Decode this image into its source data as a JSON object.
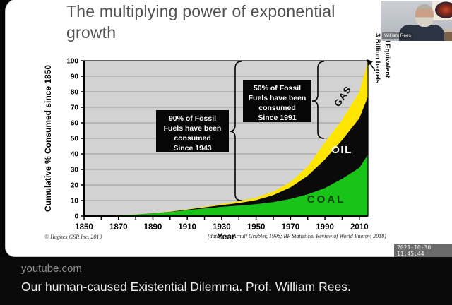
{
  "page": {
    "site": "youtube.com",
    "video_title": "Our human-caused Existential Dilemma. Prof. William Rees.",
    "timestamp": "2021-10-30 11:45:44"
  },
  "webcam": {
    "name_label": "William Rees"
  },
  "slide": {
    "title": "The multiplying power of exponential growth",
    "right_axis_note": [
      "3 Billion barrels",
      "Oil Equivalent"
    ],
    "footnote_left": "© Hughes GSR Inc, 2019",
    "footnote_right": "(data from Arnulf Grubler, 1998; BP Statistical Review of World Energy, 2018)"
  },
  "chart_data": {
    "type": "area",
    "stacked": true,
    "title": "The multiplying power of exponential growth",
    "xlabel": "Year",
    "ylabel": "Cumulative % Consumed since 1850",
    "xlim": [
      1850,
      2015
    ],
    "ylim": [
      0,
      100
    ],
    "x_ticks": [
      1850,
      1870,
      1890,
      1910,
      1930,
      1950,
      1970,
      1990,
      2010
    ],
    "y_ticks": [
      0,
      10,
      20,
      30,
      40,
      50,
      60,
      70,
      80,
      90,
      100
    ],
    "grid": true,
    "x": [
      1850,
      1860,
      1870,
      1880,
      1890,
      1900,
      1910,
      1920,
      1930,
      1940,
      1950,
      1960,
      1970,
      1980,
      1990,
      2000,
      2010,
      2015
    ],
    "series": [
      {
        "name": "COAL",
        "color": "#17c417",
        "label_color": "#123f12",
        "cumulative_top": [
          0,
          0.2,
          0.5,
          1.0,
          1.7,
          2.6,
          3.8,
          4.9,
          5.9,
          6.7,
          7.6,
          9.0,
          11.0,
          14.0,
          18.0,
          24.0,
          31.0,
          39.5
        ]
      },
      {
        "name": "OIL",
        "color": "#0a0a0a",
        "label_color": "#ffffff",
        "cumulative_top": [
          0,
          0.2,
          0.5,
          1.0,
          1.8,
          2.8,
          4.2,
          5.6,
          7.1,
          8.4,
          10.3,
          13.5,
          18.5,
          26.0,
          36.5,
          49.0,
          63.0,
          77.0
        ]
      },
      {
        "name": "GAS",
        "color": "#ffe600",
        "label_color": "#111111",
        "cumulative_top": [
          0,
          0.2,
          0.6,
          1.1,
          1.9,
          3.0,
          4.5,
          6.1,
          7.8,
          9.5,
          11.8,
          15.8,
          22.0,
          32.0,
          47.5,
          62.0,
          80.0,
          100.0
        ]
      }
    ],
    "annotations": [
      {
        "lines": [
          "90% of Fossil",
          "Fuels have been",
          "consumed",
          "Since 1943"
        ],
        "target_year": 1943,
        "target_percent": 10
      },
      {
        "lines": [
          "50% of Fossil",
          "Fuels have been",
          "consumed",
          "Since 1991"
        ],
        "target_year": 1991,
        "target_percent": 50
      }
    ],
    "colors": {
      "plot_bg": "#d2d2d2",
      "grid": "#8a8a8a",
      "axis": "#000000"
    }
  }
}
